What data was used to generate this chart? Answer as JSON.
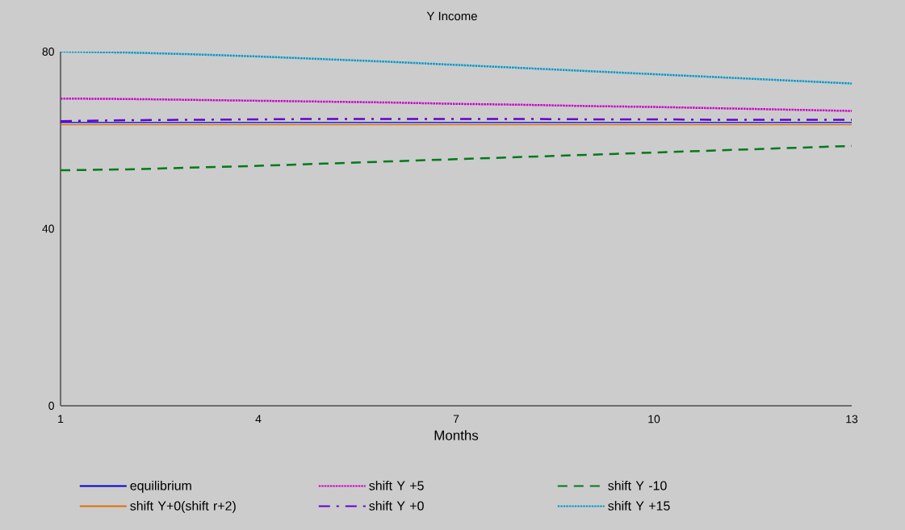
{
  "chart_data": {
    "type": "line",
    "title": "Y Income",
    "xlabel": "Months",
    "x": [
      1,
      2,
      3,
      4,
      5,
      6,
      7,
      8,
      9,
      10,
      11,
      12,
      13
    ],
    "xlim": [
      1,
      13
    ],
    "xticks": [
      1,
      4,
      7,
      10,
      13
    ],
    "ylim": [
      0,
      80
    ],
    "yticks": [
      0,
      40,
      80
    ],
    "grid": false,
    "legend": "bottom",
    "marker": "none",
    "series": [
      {
        "name": "equilibrium",
        "color": "#0000cc",
        "line_style": "solid",
        "values": [
          64.0,
          64.0,
          64.0,
          64.0,
          64.0,
          64.0,
          64.0,
          64.0,
          64.0,
          64.0,
          64.0,
          64.0,
          64.0
        ]
      },
      {
        "name": "shift Y +5",
        "color": "#cc00cc",
        "line_style": "dotted",
        "values": [
          69.4,
          69.3,
          69.1,
          68.9,
          68.7,
          68.5,
          68.2,
          68.0,
          67.7,
          67.5,
          67.2,
          66.9,
          66.6
        ]
      },
      {
        "name": "shift Y -10",
        "color": "#007a1a",
        "line_style": "dashed",
        "values": [
          53.2,
          53.4,
          53.8,
          54.2,
          54.7,
          55.2,
          55.7,
          56.2,
          56.7,
          57.2,
          57.7,
          58.2,
          58.7
        ]
      },
      {
        "name": "shift Y+0(shift r+2)",
        "color": "#e07000",
        "line_style": "solid",
        "values": [
          63.5,
          63.5,
          63.5,
          63.5,
          63.5,
          63.5,
          63.5,
          63.5,
          63.5,
          63.5,
          63.5,
          63.5,
          63.5
        ]
      },
      {
        "name": "shift Y +0",
        "color": "#6600cc",
        "line_style": "dashdot",
        "values": [
          64.3,
          64.5,
          64.6,
          64.7,
          64.8,
          64.8,
          64.8,
          64.8,
          64.7,
          64.7,
          64.6,
          64.6,
          64.6
        ]
      },
      {
        "name": "shift Y +15",
        "color": "#0099cc",
        "line_style": "dotted",
        "values": [
          80.0,
          79.8,
          79.4,
          78.9,
          78.3,
          77.7,
          77.0,
          76.3,
          75.6,
          74.9,
          74.2,
          73.5,
          72.8
        ]
      }
    ]
  }
}
